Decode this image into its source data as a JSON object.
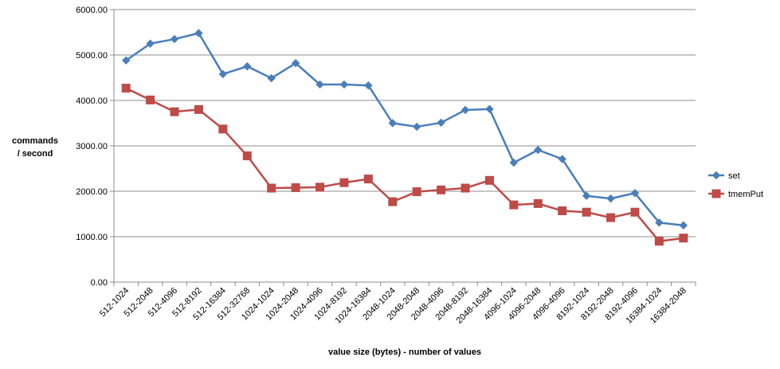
{
  "chart_data": {
    "type": "line",
    "title": "",
    "xlabel": "value size (bytes) - number of values",
    "ylabel_lines": [
      "commands",
      "/ second"
    ],
    "ylim": [
      0,
      6000
    ],
    "yticks": [
      0,
      1000,
      2000,
      3000,
      4000,
      5000,
      6000
    ],
    "ytick_labels": [
      "0.00",
      "1000.00",
      "2000.00",
      "3000.00",
      "4000.00",
      "5000.00",
      "6000.00"
    ],
    "grid": true,
    "legend_position": "right",
    "categories": [
      "512-1024",
      "512-2048",
      "512-4096",
      "512-8192",
      "512-16384",
      "512-32768",
      "1024-1024",
      "1024-2048",
      "1024-4096",
      "1024-8192",
      "1024-16384",
      "2048-1024",
      "2048-2048",
      "2048-4096",
      "2048-8192",
      "2048-16384",
      "4096-1024",
      "4096-2048",
      "4096-4096",
      "8192-1024",
      "8192-2048",
      "8192-4096",
      "16384-1024",
      "16384-2048"
    ],
    "series": [
      {
        "name": "set",
        "color": "#4A7EBB",
        "marker": "diamond",
        "values": [
          4880,
          5250,
          5350,
          5480,
          4580,
          4750,
          4490,
          4820,
          4350,
          4350,
          4330,
          3500,
          3420,
          3510,
          3790,
          3810,
          2630,
          2910,
          2710,
          1900,
          1840,
          1960,
          1310,
          1250
        ]
      },
      {
        "name": "tmemPut",
        "color": "#BE4B48",
        "marker": "square",
        "values": [
          4270,
          4010,
          3750,
          3800,
          3370,
          2780,
          2070,
          2080,
          2090,
          2190,
          2270,
          1770,
          1990,
          2030,
          2070,
          2240,
          1700,
          1730,
          1570,
          1540,
          1420,
          1540,
          900,
          970
        ]
      }
    ]
  }
}
